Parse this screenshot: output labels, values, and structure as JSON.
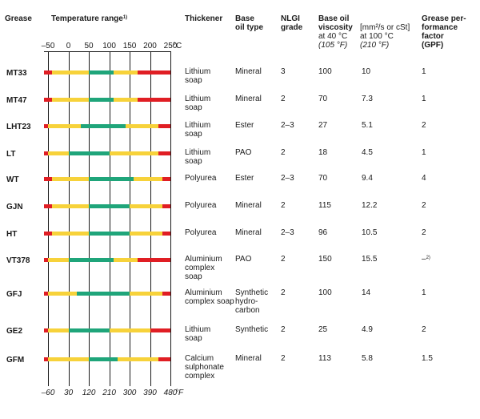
{
  "headers": {
    "grease": "Grease",
    "temperature_range": "Temperature range",
    "temperature_range_note": "1)",
    "thickener": "Thickener",
    "base_oil_type": [
      "Base",
      "oil type"
    ],
    "nlgi": [
      "NLGI",
      "grade"
    ],
    "base_oil_viscosity": [
      "Base oil",
      "viscosity"
    ],
    "viscosity_unit": "[mm²/s or cSt]",
    "at40": "at 40 °C",
    "at40f": "(105 °F)",
    "at100": "at 100 °C",
    "at100f": "(210 °F)",
    "gpf": [
      "Grease per-",
      "formance",
      "factor",
      "(GPF)"
    ]
  },
  "celsius_ticks": [
    "–50",
    "0",
    "50",
    "100",
    "150",
    "200",
    "250"
  ],
  "celsius_unit": "°C",
  "fahrenheit_ticks": [
    "–60",
    "30",
    "120",
    "210",
    "300",
    "390",
    "480"
  ],
  "fahrenheit_unit": "°F",
  "colors": {
    "red": "#e01e24",
    "yellow": "#f7d23a",
    "green": "#1fa57a"
  },
  "rows": [
    {
      "name": "MT33",
      "thickener": [
        "Lithium",
        "soap"
      ],
      "base_oil": "Mineral",
      "nlgi": "3",
      "v40": "100",
      "v100": "10",
      "gpf": "1",
      "bands_c": {
        "red_lo": [
          -60,
          -40
        ],
        "yellow_lo": [
          -40,
          50
        ],
        "green": [
          50,
          110
        ],
        "yellow_hi": [
          110,
          170
        ],
        "red_hi": [
          170,
          250
        ]
      }
    },
    {
      "name": "MT47",
      "thickener": [
        "Lithium",
        "soap"
      ],
      "base_oil": "Mineral",
      "nlgi": "2",
      "v40": "70",
      "v100": "7.3",
      "gpf": "1",
      "bands_c": {
        "red_lo": [
          -60,
          -40
        ],
        "yellow_lo": [
          -40,
          50
        ],
        "green": [
          50,
          110
        ],
        "yellow_hi": [
          110,
          170
        ],
        "red_hi": [
          170,
          250
        ]
      }
    },
    {
      "name": "LHT23",
      "thickener": [
        "Lithium",
        "soap"
      ],
      "base_oil": "Ester",
      "nlgi": "2–3",
      "v40": "27",
      "v100": "5.1",
      "gpf": "2",
      "bands_c": {
        "red_lo": [
          -60,
          -50
        ],
        "yellow_lo": [
          -50,
          30
        ],
        "green": [
          30,
          140
        ],
        "yellow_hi": [
          140,
          220
        ],
        "red_hi": [
          220,
          250
        ]
      }
    },
    {
      "name": "LT",
      "thickener": [
        "Lithium",
        "soap"
      ],
      "base_oil": "PAO",
      "nlgi": "2",
      "v40": "18",
      "v100": "4.5",
      "gpf": "1",
      "bands_c": {
        "red_lo": [
          -60,
          -50
        ],
        "yellow_lo": [
          -50,
          0
        ],
        "green": [
          0,
          100
        ],
        "yellow_hi": [
          100,
          220
        ],
        "red_hi": [
          220,
          250
        ]
      }
    },
    {
      "name": "WT",
      "thickener": [
        "Polyurea"
      ],
      "base_oil": "Ester",
      "nlgi": "2–3",
      "v40": "70",
      "v100": "9.4",
      "gpf": "4",
      "bands_c": {
        "red_lo": [
          -60,
          -40
        ],
        "yellow_lo": [
          -40,
          50
        ],
        "green": [
          50,
          160
        ],
        "yellow_hi": [
          160,
          230
        ],
        "red_hi": [
          230,
          250
        ]
      }
    },
    {
      "name": "GJN",
      "thickener": [
        "Polyurea"
      ],
      "base_oil": "Mineral",
      "nlgi": "2",
      "v40": "115",
      "v100": "12.2",
      "gpf": "2",
      "bands_c": {
        "red_lo": [
          -60,
          -40
        ],
        "yellow_lo": [
          -40,
          50
        ],
        "green": [
          50,
          150
        ],
        "yellow_hi": [
          150,
          230
        ],
        "red_hi": [
          230,
          250
        ]
      }
    },
    {
      "name": "HT",
      "thickener": [
        "Polyurea"
      ],
      "base_oil": "Mineral",
      "nlgi": "2–3",
      "v40": "96",
      "v100": "10.5",
      "gpf": "2",
      "bands_c": {
        "red_lo": [
          -60,
          -40
        ],
        "yellow_lo": [
          -40,
          50
        ],
        "green": [
          50,
          150
        ],
        "yellow_hi": [
          150,
          230
        ],
        "red_hi": [
          230,
          250
        ]
      }
    },
    {
      "name": "VT378",
      "thickener": [
        "Aluminium",
        "complex",
        "soap"
      ],
      "base_oil": "PAO",
      "nlgi": "2",
      "v40": "150",
      "v100": "15.5",
      "gpf": "–",
      "gpf_note": "2)",
      "bands_c": {
        "red_lo": [
          -60,
          -50
        ],
        "yellow_lo": [
          -50,
          0
        ],
        "green": [
          0,
          110
        ],
        "yellow_hi": [
          110,
          170
        ],
        "red_hi": [
          170,
          250
        ]
      }
    },
    {
      "name": "GFJ",
      "thickener": [
        "Aluminium",
        "complex soap"
      ],
      "base_oil_lines": [
        "Synthetic",
        "hydro-",
        "carbon"
      ],
      "nlgi": "2",
      "v40": "100",
      "v100": "14",
      "gpf": "1",
      "bands_c": {
        "red_lo": [
          -60,
          -50
        ],
        "yellow_lo": [
          -50,
          20
        ],
        "green": [
          20,
          150
        ],
        "yellow_hi": [
          150,
          230
        ],
        "red_hi": [
          230,
          250
        ]
      }
    },
    {
      "name": "GE2",
      "thickener": [
        "Lithium",
        "soap"
      ],
      "base_oil": "Synthetic",
      "nlgi": "2",
      "v40": "25",
      "v100": "4.9",
      "gpf": "2",
      "bands_c": {
        "red_lo": [
          -60,
          -50
        ],
        "yellow_lo": [
          -50,
          0
        ],
        "green": [
          0,
          100
        ],
        "yellow_hi": [
          100,
          200
        ],
        "red_hi": [
          200,
          250
        ]
      }
    },
    {
      "name": "GFM",
      "thickener": [
        "Calcium",
        "sulphonate",
        "complex"
      ],
      "base_oil": "Mineral",
      "nlgi": "2",
      "v40": "113",
      "v100": "5.8",
      "gpf": "1.5",
      "bands_c": {
        "red_lo": [
          -60,
          -50
        ],
        "yellow_lo": [
          -50,
          50
        ],
        "green": [
          50,
          120
        ],
        "yellow_hi": [
          120,
          220
        ],
        "red_hi": [
          220,
          250
        ]
      }
    }
  ]
}
